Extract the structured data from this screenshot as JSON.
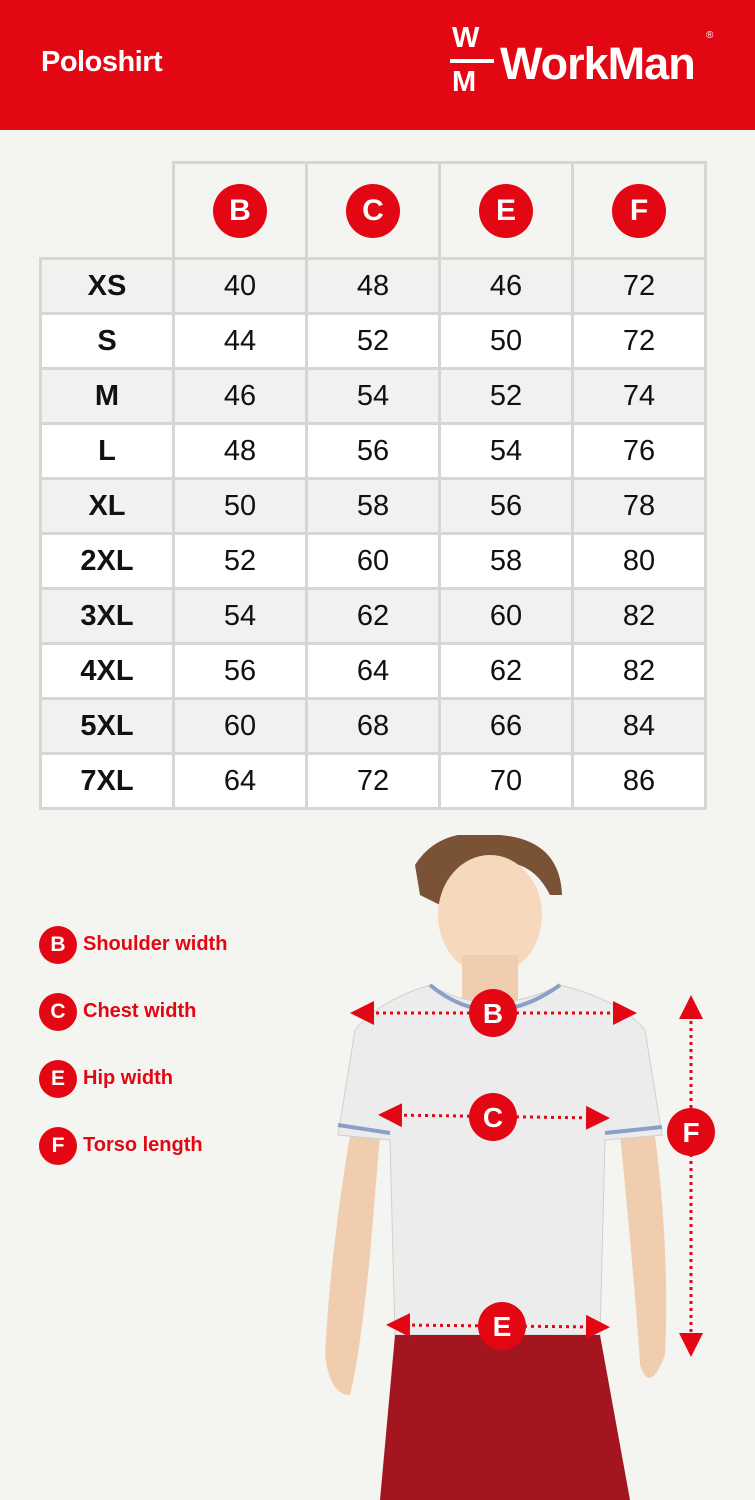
{
  "header": {
    "title": "Poloshirt",
    "brand": "WorkMan",
    "brand_mark_top": "W",
    "brand_mark_bottom": "M",
    "registered": "®",
    "color": "#e30613"
  },
  "table": {
    "columns": [
      "B",
      "C",
      "E",
      "F"
    ],
    "rows": [
      {
        "size": "XS",
        "values": [
          "40",
          "48",
          "46",
          "72"
        ]
      },
      {
        "size": "S",
        "values": [
          "44",
          "52",
          "50",
          "72"
        ]
      },
      {
        "size": "M",
        "values": [
          "46",
          "54",
          "52",
          "74"
        ]
      },
      {
        "size": "L",
        "values": [
          "48",
          "56",
          "54",
          "76"
        ]
      },
      {
        "size": "XL",
        "values": [
          "50",
          "58",
          "56",
          "78"
        ]
      },
      {
        "size": "2XL",
        "values": [
          "52",
          "60",
          "58",
          "80"
        ]
      },
      {
        "size": "3XL",
        "values": [
          "54",
          "62",
          "60",
          "82"
        ]
      },
      {
        "size": "4XL",
        "values": [
          "56",
          "64",
          "62",
          "82"
        ]
      },
      {
        "size": "5XL",
        "values": [
          "60",
          "68",
          "66",
          "84"
        ]
      },
      {
        "size": "7XL",
        "values": [
          "64",
          "72",
          "70",
          "86"
        ]
      }
    ]
  },
  "legend": [
    {
      "key": "B",
      "label": "Shoulder width"
    },
    {
      "key": "C",
      "label": "Chest width"
    },
    {
      "key": "E",
      "label": "Hip width"
    },
    {
      "key": "F",
      "label": "Torso length"
    }
  ],
  "figure": {
    "markers": [
      "B",
      "C",
      "E",
      "F"
    ]
  }
}
